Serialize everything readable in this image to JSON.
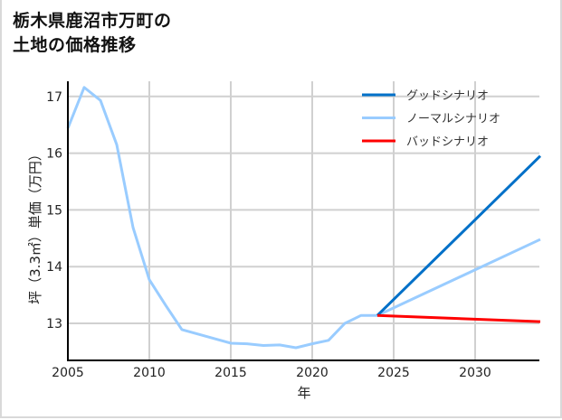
{
  "title_line1": "栃木県鹿沼市万町の",
  "title_line2": "土地の価格推移",
  "chart_data": {
    "type": "line",
    "title": "栃木県鹿沼市万町の土地の価格推移",
    "xlabel": "年",
    "ylabel": "坪（3.3㎡）単価（万円）",
    "xlim": [
      2005,
      2034
    ],
    "ylim": [
      12.4,
      17.4
    ],
    "xticks": [
      2005,
      2010,
      2015,
      2020,
      2025,
      2030
    ],
    "yticks": [
      13,
      14,
      15,
      16,
      17
    ],
    "grid": true,
    "legend_position": "upper right",
    "series": [
      {
        "name": "グッドシナリオ",
        "color": "#0070c8",
        "x": [
          2024,
          2034
        ],
        "values": [
          13.14,
          15.95
        ]
      },
      {
        "name": "ノーマルシナリオ",
        "color": "#99ccff",
        "x": [
          2005,
          2006,
          2007,
          2008,
          2009,
          2010,
          2011,
          2012,
          2013,
          2014,
          2015,
          2016,
          2017,
          2018,
          2019,
          2020,
          2021,
          2022,
          2023,
          2024,
          2034
        ],
        "values": [
          16.44,
          17.16,
          16.93,
          16.15,
          14.69,
          13.77,
          13.32,
          12.89,
          12.81,
          12.73,
          12.65,
          12.64,
          12.61,
          12.62,
          12.57,
          12.64,
          12.7,
          13.0,
          13.14,
          13.14,
          14.48
        ]
      },
      {
        "name": "バッドシナリオ",
        "color": "#ff0000",
        "x": [
          2024,
          2034
        ],
        "values": [
          13.14,
          13.03
        ]
      }
    ]
  }
}
